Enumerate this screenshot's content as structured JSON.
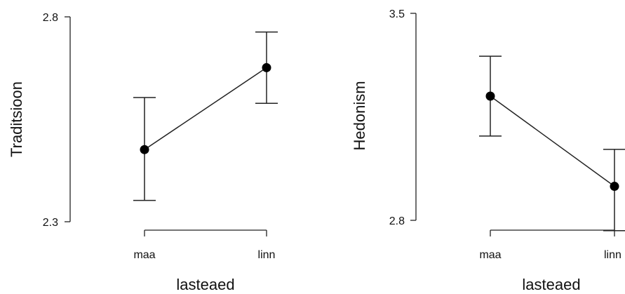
{
  "chart_data": [
    {
      "type": "line",
      "xlabel": "lasteaed",
      "ylabel": "Traditsioon",
      "categories": [
        "maa",
        "linn"
      ],
      "values": [
        2.476,
        2.676
      ],
      "error_low": [
        2.352,
        2.589
      ],
      "error_high": [
        2.603,
        2.763
      ],
      "ylim": [
        2.3,
        2.8
      ],
      "yticks": [
        "2.3",
        "2.8"
      ]
    },
    {
      "type": "line",
      "xlabel": "lasteaed",
      "ylabel": "Hedonism",
      "categories": [
        "maa",
        "linn"
      ],
      "values": [
        3.22,
        2.915
      ],
      "error_low": [
        3.085,
        2.765
      ],
      "error_high": [
        3.355,
        3.04
      ],
      "ylim": [
        2.8,
        3.5
      ],
      "yticks": [
        "2.8",
        "3.5"
      ]
    }
  ]
}
